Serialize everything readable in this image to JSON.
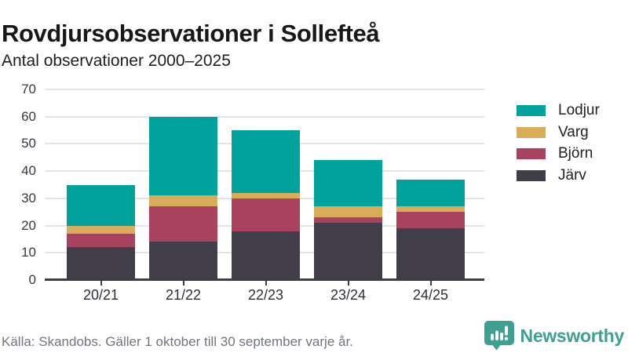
{
  "header": {
    "title": "Rovdjursobservationer i Sollefteå",
    "subtitle": "Antal observationer 2000–2025"
  },
  "chart_data": {
    "type": "bar",
    "stacked": true,
    "title": "Rovdjursobservationer i Sollefteå",
    "subtitle": "Antal observationer 2000–2025",
    "xlabel": "",
    "ylabel": "",
    "categories": [
      "20/21",
      "21/22",
      "22/23",
      "23/24",
      "24/25"
    ],
    "series": [
      {
        "name": "Lodjur",
        "color": "#00a39b",
        "values": [
          15,
          29,
          23,
          17,
          10
        ]
      },
      {
        "name": "Varg",
        "color": "#d9ac59",
        "values": [
          3,
          4,
          2,
          4,
          2
        ]
      },
      {
        "name": "Björn",
        "color": "#a8425f",
        "values": [
          5,
          13,
          12,
          2,
          6
        ]
      },
      {
        "name": "Järv",
        "color": "#413d49",
        "values": [
          12,
          14,
          18,
          21,
          19
        ]
      }
    ],
    "stack_order_bottom_to_top": [
      "Järv",
      "Björn",
      "Varg",
      "Lodjur"
    ],
    "ylim": [
      0,
      70
    ],
    "ytick_step": 10,
    "grid": "horizontal",
    "legend_position": "right"
  },
  "footer": {
    "source": "Källa: Skandobs. Gäller 1 oktober till 30 september varje år.",
    "brand": "Newsworthy",
    "logo_icon": "bar-chart-speech-bubble-icon"
  },
  "colors": {
    "axis": "#3f3b47",
    "gridline": "#e4e4e4",
    "title_text": "#181818",
    "tick_text": "#39363f",
    "muted_text": "#71757d",
    "brand_teal": "#3e9f93",
    "background": "#ffffff"
  }
}
